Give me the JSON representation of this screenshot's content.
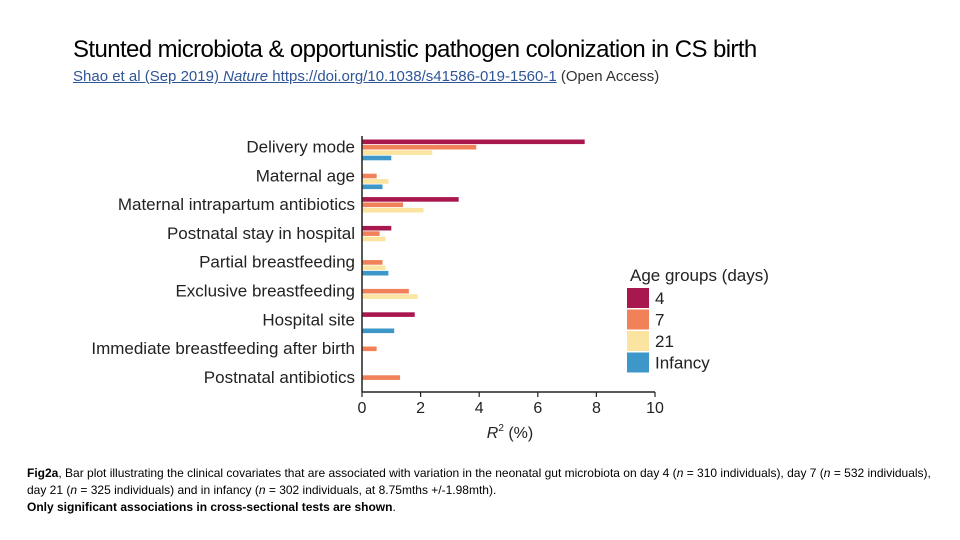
{
  "slide": {
    "title": "Stunted microbiota & opportunistic pathogen colonization in CS birth",
    "reference": {
      "link_authors": "Shao et al (Sep 2019) ",
      "link_journal": "Nature",
      "link_url_text": " https://doi.org/10.1038/s41586-019-1560-1",
      "suffix": " (Open Access)"
    },
    "caption": {
      "fig_label": "Fig2a",
      "part1": ", Bar plot illustrating the clinical covariates that are associated with variation in the neonatal gut microbiota on day 4 (",
      "n1": "n",
      "part2": " = 310 individuals), day 7 (",
      "n2": "n",
      "part3": " = 532 individuals), day 21 (",
      "n3": "n",
      "part4": " = 325 individuals) and in infancy (",
      "n4": "n",
      "part5": " = 302 individuals, at 8.75mths +/-1.98mth).",
      "bold_line": "Only significant associations in cross-sectional tests are shown",
      "end": "."
    }
  },
  "chart_data": {
    "type": "bar",
    "orientation": "horizontal",
    "categories": [
      "Delivery mode",
      "Maternal age",
      "Maternal intrapartum antibiotics",
      "Postnatal stay in hospital",
      "Partial breastfeeding",
      "Exclusive breastfeeding",
      "Hospital site",
      "Immediate breastfeeding after birth",
      "Postnatal antibiotics"
    ],
    "series": [
      {
        "name": "4",
        "color": "#a8184f",
        "values": [
          7.6,
          null,
          3.3,
          1.0,
          null,
          null,
          1.8,
          null,
          null
        ]
      },
      {
        "name": "7",
        "color": "#f08158",
        "values": [
          3.9,
          0.5,
          1.4,
          0.6,
          0.7,
          1.6,
          null,
          0.5,
          1.3
        ]
      },
      {
        "name": "21",
        "color": "#fbe3a0",
        "values": [
          2.4,
          0.9,
          2.1,
          0.8,
          0.8,
          1.9,
          null,
          null,
          null
        ]
      },
      {
        "name": "Infancy",
        "color": "#3e97c9",
        "values": [
          1.0,
          0.7,
          null,
          null,
          0.9,
          null,
          1.1,
          null,
          null
        ]
      }
    ],
    "xlabel_base": "R",
    "xlabel_sup": "2",
    "xlabel_suffix": " (%)",
    "xlim": [
      0,
      10
    ],
    "xticks": [
      "0",
      "2",
      "4",
      "6",
      "8",
      "10"
    ],
    "legend_title": "Age groups (days)",
    "legend_position": "right",
    "grid": false
  }
}
